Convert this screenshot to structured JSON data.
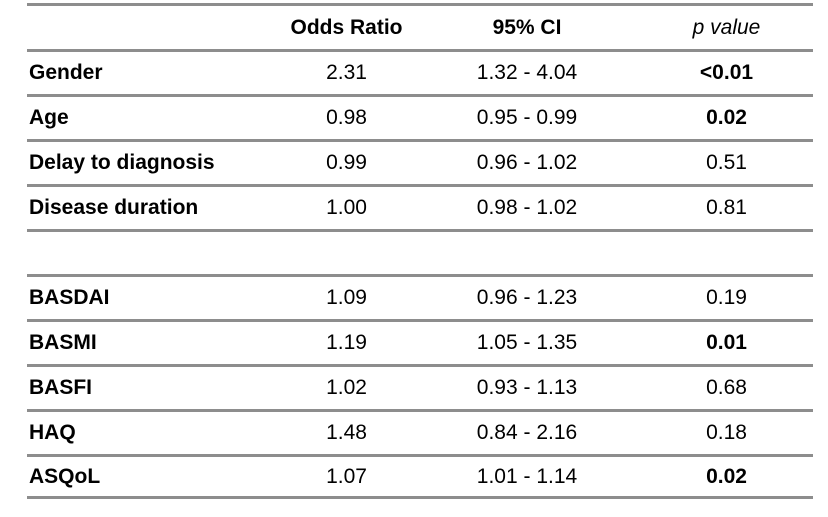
{
  "page": {
    "background": "#ffffff"
  },
  "colors": {
    "rule_line": "#8d8d8d",
    "text": "#000000"
  },
  "table": {
    "headers": {
      "variable": "",
      "odds_ratio": "Odds Ratio",
      "ci": "95% CI",
      "p_value": "p value"
    },
    "rows": [
      {
        "label": "Gender",
        "odds_ratio": "2.31",
        "ci": "1.32 - 4.04",
        "p_value": "<0.01",
        "p_bold": true
      },
      {
        "label": "Age",
        "odds_ratio": "0.98",
        "ci": "0.95 - 0.99",
        "p_value": "0.02",
        "p_bold": true
      },
      {
        "label": "Delay to diagnosis",
        "odds_ratio": "0.99",
        "ci": "0.96 - 1.02",
        "p_value": "0.51",
        "p_bold": false
      },
      {
        "label": "Disease duration",
        "odds_ratio": "1.00",
        "ci": "0.98 - 1.02",
        "p_value": "0.81",
        "p_bold": false
      },
      {
        "label": "BASDAI",
        "odds_ratio": "1.09",
        "ci": "0.96 - 1.23",
        "p_value": "0.19",
        "p_bold": false
      },
      {
        "label": "BASMI",
        "odds_ratio": "1.19",
        "ci": "1.05 - 1.35",
        "p_value": "0.01",
        "p_bold": true
      },
      {
        "label": "BASFI",
        "odds_ratio": "1.02",
        "ci": "0.93 - 1.13",
        "p_value": "0.68",
        "p_bold": false
      },
      {
        "label": "HAQ",
        "odds_ratio": "1.48",
        "ci": "0.84 - 2.16",
        "p_value": "0.18",
        "p_bold": false
      },
      {
        "label": "ASQoL",
        "odds_ratio": "1.07",
        "ci": "1.01 - 1.14",
        "p_value": "0.02",
        "p_bold": true
      }
    ]
  }
}
